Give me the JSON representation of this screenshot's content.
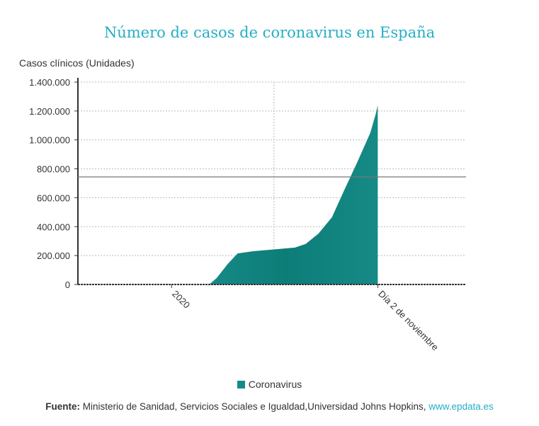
{
  "title": "Número de casos de coronavirus en España",
  "colors": {
    "title": "#26aec6",
    "series": "#168a86",
    "series_dark": "#0d7d78",
    "link": "#26aec6"
  },
  "chart_data": {
    "type": "area",
    "title": "Número de casos de coronavirus en España",
    "ylabel": "Casos clínicos (Unidades)",
    "xlabel": "",
    "ylim": [
      0,
      1400000
    ],
    "xlim": [
      "2019-08-15",
      "2021-03-13"
    ],
    "y_ticks": [
      {
        "value": 0,
        "label": "0"
      },
      {
        "value": 200000,
        "label": "200.000"
      },
      {
        "value": 400000,
        "label": "400.000"
      },
      {
        "value": 600000,
        "label": "600.000"
      },
      {
        "value": 800000,
        "label": "800.000"
      },
      {
        "value": 1000000,
        "label": "1.000.000"
      },
      {
        "value": 1200000,
        "label": "1.200.000"
      },
      {
        "value": 1400000,
        "label": "1.400.000"
      }
    ],
    "x_ticks": [
      {
        "date": "2020-01-01",
        "label": "2020"
      },
      {
        "date": "2020-11-02",
        "label": "Día 2 de noviembre"
      }
    ],
    "x_gridline": "2020-06-01",
    "reference_line": 744000,
    "grid": true,
    "legend_position": "bottom",
    "series": [
      {
        "name": "Coronavirus",
        "points": [
          [
            "2020-02-26",
            0
          ],
          [
            "2020-03-08",
            45000
          ],
          [
            "2020-03-24",
            140000
          ],
          [
            "2020-04-08",
            215000
          ],
          [
            "2020-05-01",
            230000
          ],
          [
            "2020-07-02",
            255000
          ],
          [
            "2020-07-18",
            280000
          ],
          [
            "2020-08-06",
            352000
          ],
          [
            "2020-08-26",
            465000
          ],
          [
            "2020-09-14",
            660000
          ],
          [
            "2020-10-02",
            840000
          ],
          [
            "2020-10-22",
            1050000
          ],
          [
            "2020-10-30",
            1180000
          ],
          [
            "2020-11-02",
            1240000
          ]
        ]
      }
    ]
  },
  "legend": {
    "label": "Coronavirus"
  },
  "source": {
    "label": "Fuente:",
    "text": " Ministerio de Sanidad, Servicios Sociales e Igualdad,Universidad Johns Hopkins, ",
    "link": "www.epdata.es"
  }
}
